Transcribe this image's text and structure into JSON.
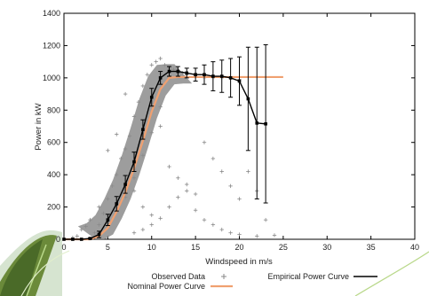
{
  "chart_data": {
    "type": "scatter",
    "title": "",
    "xlabel": "Windspeed in m/s",
    "ylabel": "Power in kW",
    "xlim": [
      0,
      40
    ],
    "ylim": [
      0,
      1400
    ],
    "x_ticks": [
      0,
      5,
      10,
      15,
      20,
      25,
      30,
      35,
      40
    ],
    "y_ticks": [
      0,
      200,
      400,
      600,
      800,
      1000,
      1200,
      1400
    ],
    "grid": false,
    "legend_placement": "bottom",
    "series": [
      {
        "name": "Observed Data",
        "kind": "scatter",
        "color": "#888888",
        "marker": "+",
        "x": [
          1,
          1.5,
          2,
          2.5,
          3,
          3.5,
          4,
          4.5,
          5,
          5,
          5.5,
          6,
          6,
          6.5,
          7,
          7,
          7.5,
          8,
          8,
          8.5,
          9,
          9,
          9.5,
          10,
          10,
          10.5,
          11,
          11,
          11.5,
          12,
          12.5,
          13,
          13.5,
          14,
          15,
          16,
          17,
          18,
          19,
          20,
          3,
          4,
          5,
          6,
          7,
          8,
          9,
          10,
          11,
          12,
          13,
          14,
          15,
          16,
          17,
          18,
          19,
          20,
          21,
          22,
          23,
          8,
          9,
          10,
          11,
          12,
          13,
          14,
          15,
          16,
          17,
          18,
          19,
          20,
          22,
          24
        ],
        "y": [
          10,
          20,
          60,
          80,
          120,
          40,
          200,
          160,
          250,
          80,
          330,
          400,
          170,
          500,
          560,
          260,
          640,
          760,
          380,
          850,
          950,
          520,
          1020,
          1080,
          660,
          1100,
          1120,
          820,
          1080,
          1060,
          1050,
          1040,
          1030,
          1020,
          1010,
          1000,
          1000,
          1000,
          1000,
          990,
          120,
          90,
          550,
          650,
          900,
          300,
          200,
          150,
          700,
          450,
          380,
          300,
          280,
          600,
          500,
          420,
          330,
          250,
          420,
          300,
          120,
          40,
          60,
          90,
          130,
          200,
          260,
          340,
          180,
          120,
          90,
          60,
          40,
          30,
          20,
          25
        ]
      },
      {
        "name": "Empirical Power Curve",
        "kind": "line-errorbar",
        "color": "#000000",
        "x": [
          0,
          1,
          2,
          3,
          4,
          5,
          6,
          7,
          8,
          9,
          10,
          11,
          12,
          13,
          14,
          15,
          16,
          17,
          18,
          19,
          20,
          21,
          22,
          23
        ],
        "y": [
          0,
          0,
          0,
          5,
          30,
          120,
          220,
          340,
          480,
          680,
          880,
          1000,
          1040,
          1040,
          1030,
          1020,
          1020,
          1010,
          1010,
          1000,
          980,
          870,
          720,
          715
        ],
        "err": [
          0,
          0,
          0,
          5,
          20,
          35,
          45,
          55,
          60,
          60,
          55,
          40,
          30,
          30,
          30,
          40,
          60,
          90,
          100,
          120,
          150,
          320,
          470,
          490
        ]
      },
      {
        "name": "Nominal Power Curve",
        "kind": "line",
        "color": "#f0a070",
        "x": [
          0,
          1,
          2,
          3,
          4,
          5,
          6,
          7,
          8,
          9,
          10,
          11,
          12,
          13,
          14,
          15,
          16,
          17,
          18,
          19,
          20,
          21,
          22,
          23,
          24,
          25
        ],
        "y": [
          0,
          0,
          0,
          0,
          20,
          70,
          170,
          290,
          440,
          610,
          790,
          930,
          1000,
          1005,
          1005,
          1005,
          1005,
          1005,
          1005,
          1005,
          1005,
          1005,
          1005,
          1005,
          1005,
          1005
        ]
      }
    ],
    "legend": [
      {
        "label": "Observed Data",
        "marker": "+"
      },
      {
        "label": "Empirical Power Curve",
        "line_color": "#000000"
      },
      {
        "label": "Nominal Power Curve",
        "line_color": "#f0a070"
      }
    ]
  }
}
